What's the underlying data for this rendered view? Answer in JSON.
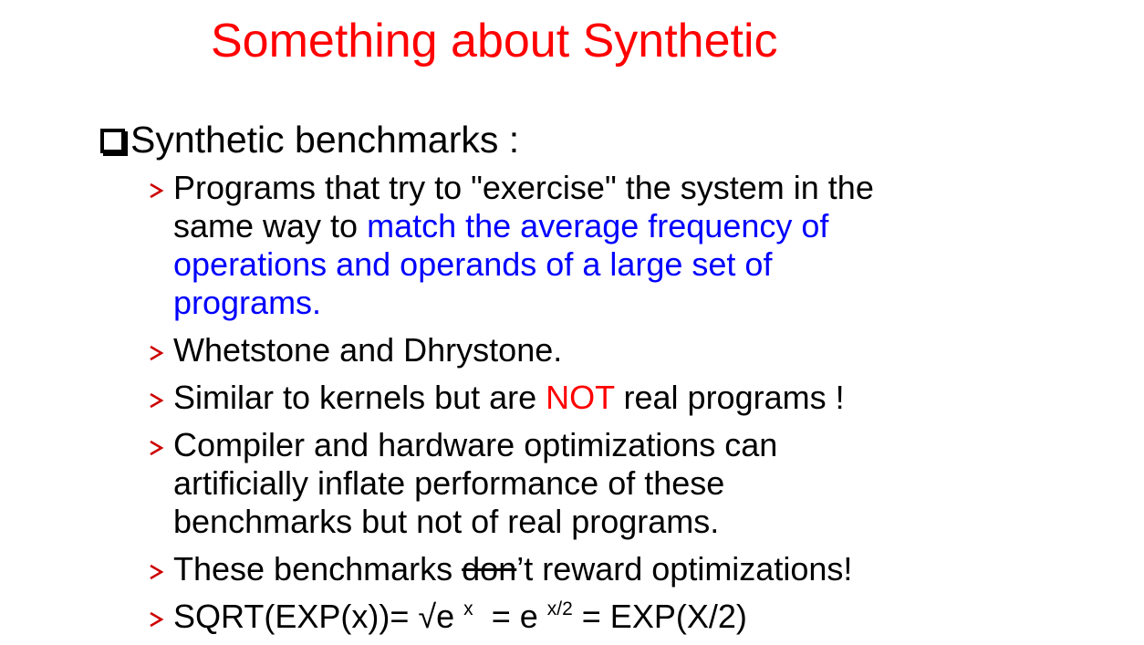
{
  "slide": {
    "title": "Something about Synthetic",
    "main_bullet": "Synthetic benchmarks :",
    "items": [
      {
        "line1": "Programs that try to \"exercise\" the system in the",
        "line2_plain": "same way to ",
        "line2_blue": "match the average frequency of",
        "line3_blue": "operations and operands of a large set of",
        "line4_blue": "programs."
      },
      {
        "text": "Whetstone and Dhrystone."
      },
      {
        "before": "Similar to kernels but are ",
        "highlight": "NOT",
        "after": " real programs !"
      },
      {
        "line1": "Compiler and hardware optimizations can",
        "line2": "artificially inflate performance of these",
        "line3": "benchmarks but not of real programs."
      },
      {
        "before": "These benchmarks ",
        "struck": "don",
        "after": "’t reward optimizations!"
      },
      {
        "lhs": "SQRT(EXP(x))= ",
        "root": "√e",
        "exp1": "x",
        "mid": "= e",
        "exp2": "x/2",
        "rhs": "= EXP(X/2)"
      }
    ]
  },
  "colors": {
    "title": "#ff0000",
    "emphasis_blue": "#0000ff",
    "emphasis_red": "#ff0000",
    "arrow": "#cc0000"
  },
  "icons": {
    "main_bullet": "hollow-square-icon",
    "sub_bullet": "arrow-bullet-icon"
  }
}
